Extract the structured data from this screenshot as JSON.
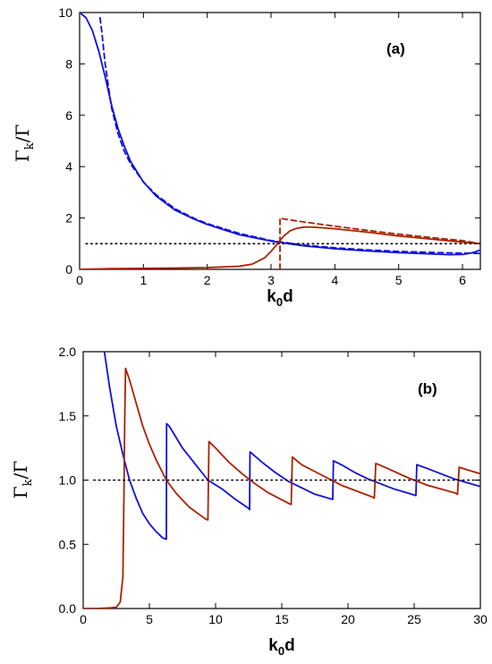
{
  "colors": {
    "blue": "#1010dd",
    "red": "#aa2200",
    "black": "#000000"
  },
  "chart_data": [
    {
      "type": "line",
      "panel_label": "(a)",
      "xlabel_main": "k",
      "xlabel_sub": "0",
      "xlabel_tail": "d",
      "ylabel_main": "Γ",
      "ylabel_sub": "k",
      "ylabel_tail": "/Γ",
      "xlim": [
        0,
        6.28
      ],
      "ylim": [
        0,
        10
      ],
      "xticks": [
        0,
        1,
        2,
        3,
        4,
        5,
        6
      ],
      "yticks": [
        0,
        2,
        4,
        6,
        8,
        10
      ],
      "grid": false,
      "series": [
        {
          "style": "solid",
          "color": "blue",
          "x": [
            0,
            0.1,
            0.2,
            0.3,
            0.4,
            0.5,
            0.6,
            0.7,
            0.8,
            1.0,
            1.2,
            1.5,
            1.8,
            2.0,
            2.5,
            3.0,
            3.5,
            4.0,
            4.5,
            5.0,
            5.5,
            5.8,
            6.0,
            6.1,
            6.2,
            6.28
          ],
          "y": [
            10,
            9.8,
            9.3,
            8.5,
            7.5,
            6.4,
            5.5,
            4.8,
            4.2,
            3.4,
            2.85,
            2.3,
            1.95,
            1.75,
            1.35,
            1.1,
            0.92,
            0.8,
            0.72,
            0.65,
            0.6,
            0.57,
            0.58,
            0.62,
            0.68,
            0.76
          ]
        },
        {
          "style": "dashed",
          "color": "blue",
          "x": [
            0.32,
            0.35,
            0.4,
            0.5,
            0.6,
            0.7,
            0.8,
            1.0,
            1.2,
            1.5,
            1.8,
            2.0,
            2.5,
            3.0,
            3.5,
            4.0,
            4.5,
            5.0,
            5.5,
            6.0,
            6.28
          ],
          "y": [
            9.8,
            9.2,
            8.0,
            6.3,
            5.3,
            4.6,
            4.1,
            3.4,
            2.9,
            2.35,
            1.98,
            1.78,
            1.4,
            1.12,
            0.95,
            0.84,
            0.76,
            0.7,
            0.66,
            0.63,
            0.62
          ]
        },
        {
          "style": "solid",
          "color": "red",
          "x": [
            0,
            0.5,
            1.0,
            1.5,
            2.0,
            2.5,
            2.7,
            2.9,
            3.0,
            3.1,
            3.2,
            3.3,
            3.4,
            3.5,
            3.6,
            3.8,
            4.0,
            4.5,
            5.0,
            5.5,
            6.0,
            6.28
          ],
          "y": [
            0,
            0.03,
            0.04,
            0.05,
            0.07,
            0.12,
            0.2,
            0.45,
            0.7,
            1.0,
            1.3,
            1.5,
            1.6,
            1.64,
            1.65,
            1.62,
            1.58,
            1.45,
            1.3,
            1.18,
            1.06,
            1.0
          ]
        },
        {
          "style": "dashed",
          "color": "red",
          "x": [
            3.14,
            3.14,
            3.2,
            3.5,
            4.0,
            4.5,
            5.0,
            5.5,
            6.0,
            6.28
          ],
          "y": [
            0,
            2.0,
            1.96,
            1.85,
            1.68,
            1.52,
            1.37,
            1.24,
            1.12,
            1.0
          ]
        },
        {
          "style": "dotted",
          "color": "black",
          "x": [
            0.1,
            6.28
          ],
          "y": [
            1.0,
            1.0
          ]
        }
      ]
    },
    {
      "type": "line",
      "panel_label": "(b)",
      "xlabel_main": "k",
      "xlabel_sub": "0",
      "xlabel_tail": "d",
      "ylabel_main": "Γ",
      "ylabel_sub": "k",
      "ylabel_tail": "/Γ",
      "xlim": [
        0,
        30
      ],
      "ylim": [
        0,
        2
      ],
      "xticks": [
        0,
        5,
        10,
        15,
        20,
        25,
        30
      ],
      "yticks": [
        "0.0",
        "0.5",
        "1.0",
        "1.5",
        "2.0"
      ],
      "ytick_values": [
        0,
        0.5,
        1.0,
        1.5,
        2.0
      ],
      "grid": false,
      "series": [
        {
          "style": "solid",
          "color": "blue",
          "x": [
            1.6,
            2.0,
            2.5,
            3.0,
            3.5,
            4.0,
            4.5,
            5.0,
            5.5,
            6.0,
            6.28,
            6.3,
            6.5,
            7.5,
            8.5,
            9.42,
            10.5,
            11.5,
            12.5,
            12.57,
            12.6,
            13.5,
            14.5,
            15.5,
            16.5,
            17.5,
            18.5,
            18.85,
            18.9,
            19.5,
            20.5,
            21.5,
            22.5,
            23.5,
            24.5,
            25.13,
            25.2,
            26,
            27,
            28,
            29,
            30
          ],
          "y": [
            2.0,
            1.72,
            1.42,
            1.2,
            1.0,
            0.86,
            0.74,
            0.66,
            0.6,
            0.55,
            0.54,
            1.44,
            1.42,
            1.25,
            1.12,
            1.0,
            0.93,
            0.85,
            0.78,
            0.77,
            1.22,
            1.14,
            1.06,
            0.99,
            0.94,
            0.89,
            0.86,
            0.85,
            1.15,
            1.12,
            1.06,
            1.01,
            0.97,
            0.93,
            0.9,
            0.88,
            1.12,
            1.09,
            1.05,
            1.01,
            0.98,
            0.95
          ]
        },
        {
          "style": "solid",
          "color": "red",
          "x": [
            0,
            1.0,
            2.0,
            2.5,
            2.8,
            3.0,
            3.08,
            3.14,
            3.2,
            3.5,
            4.0,
            4.5,
            5.0,
            5.5,
            6.28,
            7,
            8,
            9.2,
            9.42,
            9.5,
            10,
            11,
            12,
            13,
            14,
            15.5,
            15.71,
            15.8,
            16.5,
            18,
            19.5,
            21.8,
            21.99,
            22.1,
            23,
            24.5,
            26,
            28.1,
            28.27,
            28.4,
            29,
            30
          ],
          "y": [
            0,
            0.0,
            0.005,
            0.01,
            0.05,
            0.25,
            0.9,
            1.5,
            1.87,
            1.78,
            1.6,
            1.42,
            1.28,
            1.16,
            1.0,
            0.9,
            0.79,
            0.7,
            0.69,
            1.3,
            1.25,
            1.14,
            1.05,
            0.97,
            0.9,
            0.82,
            0.81,
            1.18,
            1.12,
            1.04,
            0.96,
            0.87,
            0.86,
            1.13,
            1.09,
            1.02,
            0.96,
            0.9,
            0.89,
            1.1,
            1.08,
            1.05
          ]
        },
        {
          "style": "dotted",
          "color": "black",
          "x": [
            0.8,
            30
          ],
          "y": [
            1.0,
            1.0
          ]
        }
      ]
    }
  ]
}
